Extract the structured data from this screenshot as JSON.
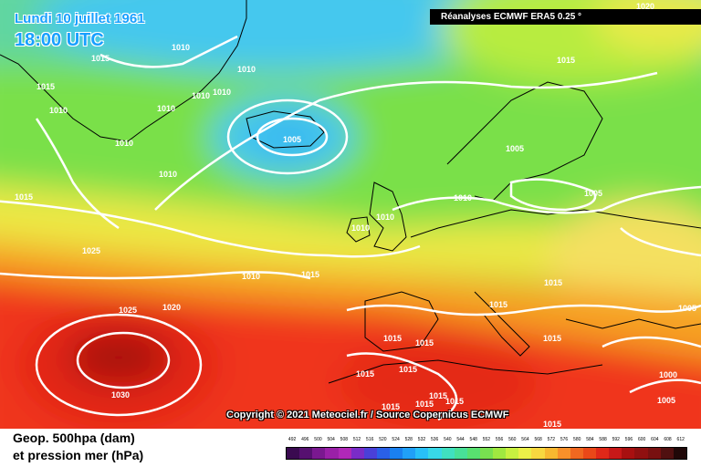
{
  "map": {
    "title_date": "Lundi 10 juillet 1961",
    "title_time": "18:00 UTC",
    "source": "Réanalyses ECMWF ERA5 0.25 °",
    "copyright": "Copyright © 2021 Meteociel.fr / Source Copernicus ECMWF",
    "legend_line1": "Geop. 500hpa (dam)",
    "legend_line2": "et pression mer (hPa)",
    "colors": {
      "low": "#45c8ee",
      "mid": "#7ae04a",
      "high_yellow": "#ece845",
      "orange": "#f6a020",
      "red": "#f0361a",
      "core": "#a81010"
    }
  },
  "pressure_labels": [
    "1020",
    "1015",
    "1010",
    "1010",
    "1015",
    "1015",
    "1010",
    "1010",
    "1010",
    "1010",
    "1010",
    "1010",
    "1005",
    "1010",
    "1015",
    "1015",
    "1005",
    "1005",
    "1010",
    "1010",
    "1025",
    "1010",
    "1015",
    "1015",
    "1020",
    "1025",
    "1015",
    "1015",
    "1015",
    "1015",
    "1015",
    "1015",
    "1015",
    "1005",
    "1000",
    "1005",
    "1030",
    "1015",
    "1015",
    "1015",
    "1015",
    "1015",
    "1015"
  ],
  "scale": {
    "values": [
      "492",
      "496",
      "500",
      "504",
      "508",
      "512",
      "516",
      "520",
      "524",
      "528",
      "532",
      "536",
      "540",
      "544",
      "548",
      "552",
      "556",
      "560",
      "564",
      "568",
      "572",
      "576",
      "580",
      "584",
      "588",
      "592",
      "596",
      "600",
      "604",
      "608",
      "612"
    ],
    "colors": [
      "#3a0a50",
      "#561070",
      "#7a1890",
      "#9a20a8",
      "#b028b8",
      "#7a2cc8",
      "#4a40d8",
      "#2a60e8",
      "#1a80f0",
      "#20a0f8",
      "#28c0f8",
      "#38d8e8",
      "#40e0c0",
      "#48e098",
      "#58e070",
      "#78e050",
      "#a0e840",
      "#c8f040",
      "#ecf048",
      "#f8d840",
      "#f8b830",
      "#f8902a",
      "#f06820",
      "#ea4818",
      "#e02818",
      "#c81818",
      "#a81010",
      "#901010",
      "#781010",
      "#501010",
      "#200808"
    ]
  }
}
